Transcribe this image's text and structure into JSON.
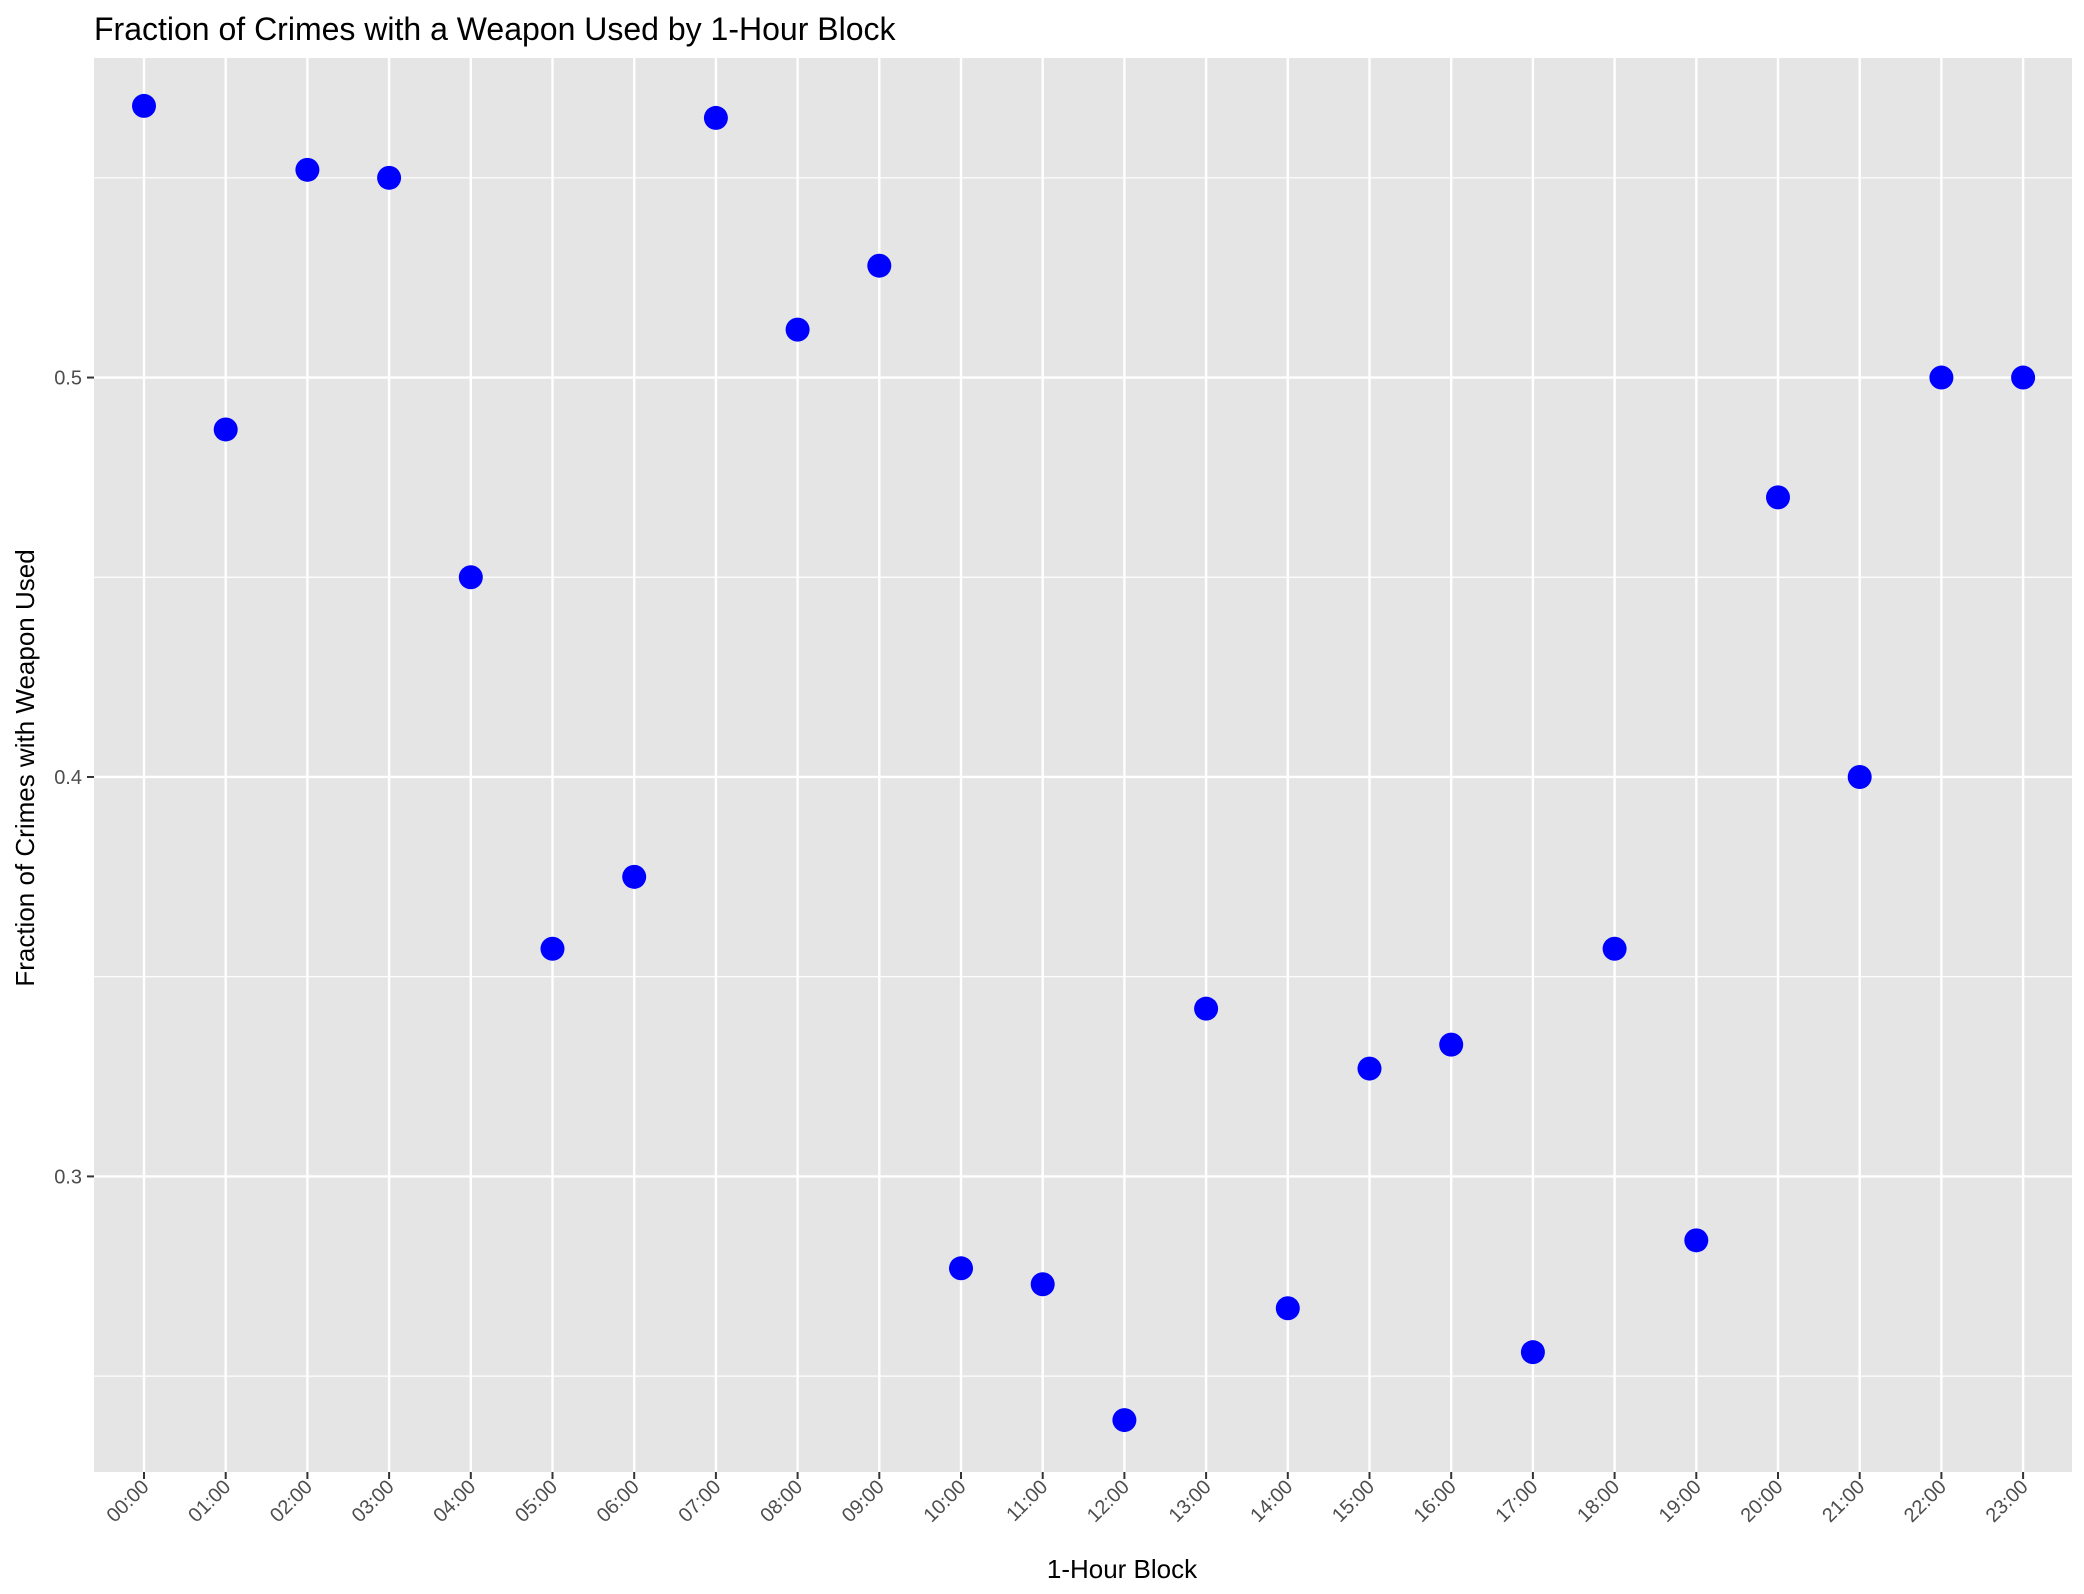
{
  "chart_data": {
    "type": "scatter",
    "title": "Fraction of Crimes with a Weapon Used by 1-Hour Block",
    "xlabel": "1-Hour Block",
    "ylabel": "Fraction of Crimes with Weapon Used",
    "categories": [
      "00:00",
      "01:00",
      "02:00",
      "03:00",
      "04:00",
      "05:00",
      "06:00",
      "07:00",
      "08:00",
      "09:00",
      "10:00",
      "11:00",
      "12:00",
      "13:00",
      "14:00",
      "15:00",
      "16:00",
      "17:00",
      "18:00",
      "19:00",
      "20:00",
      "21:00",
      "22:00",
      "23:00"
    ],
    "values": [
      0.568,
      0.487,
      0.552,
      0.55,
      0.45,
      0.357,
      0.375,
      0.565,
      0.512,
      0.528,
      0.277,
      0.273,
      0.239,
      0.342,
      0.267,
      0.327,
      0.333,
      0.256,
      0.357,
      0.284,
      0.47,
      0.4,
      0.5,
      0.5
    ],
    "ylim": [
      0.226,
      0.58
    ],
    "yticks": [
      0.3,
      0.4,
      0.5
    ],
    "ytick_labels": [
      "0.3",
      "0.4",
      "0.5"
    ],
    "grid": true,
    "point_color": "#0000ff",
    "panel_color": "#e5e5e5",
    "grid_color": "#ffffff"
  }
}
